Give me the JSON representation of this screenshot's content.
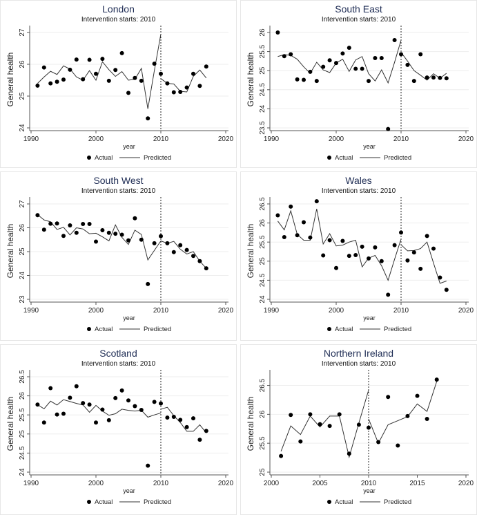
{
  "colors": {
    "title": "#1e2c54",
    "line": "#333333",
    "grid": "#eeeeee",
    "dot": "#000000"
  },
  "chart_data": [
    {
      "type": "scatter+line",
      "title": "London",
      "subtitle": "Intervention starts: 2010",
      "xlabel": "year",
      "ylabel": "General health",
      "xlim": [
        1990,
        2020
      ],
      "xticks": [
        1990,
        2000,
        2010,
        2020
      ],
      "ylim": [
        24,
        27
      ],
      "yticks": [
        "24",
        "25",
        "26",
        "27"
      ],
      "intervention_year": 2010,
      "legend": [
        "Actual",
        "Predicted"
      ],
      "legend_position": "bottom",
      "actual_x": [
        1991,
        1992,
        1993,
        1994,
        1995,
        1996,
        1997,
        1998,
        1999,
        2000,
        2001,
        2002,
        2003,
        2004,
        2005,
        2006,
        2007,
        2008,
        2009,
        2010,
        2011,
        2012,
        2013,
        2014,
        2015,
        2016,
        2017
      ],
      "actual_y": [
        25.33,
        25.9,
        25.4,
        25.45,
        25.52,
        25.83,
        26.15,
        25.53,
        26.14,
        25.7,
        26.17,
        25.48,
        25.82,
        26.35,
        25.1,
        25.57,
        25.48,
        24.3,
        26.02,
        25.7,
        25.4,
        25.12,
        25.13,
        25.27,
        25.7,
        25.32,
        25.93
      ],
      "pred_pre_x": [
        1991,
        1992,
        1993,
        1994,
        1995,
        1996,
        1997,
        1998,
        1999,
        2000,
        2001,
        2002,
        2003,
        2004,
        2005,
        2006,
        2007,
        2008,
        2009,
        2010
      ],
      "pred_pre_y": [
        25.4,
        25.6,
        25.78,
        25.68,
        25.95,
        25.85,
        25.6,
        25.5,
        25.8,
        25.5,
        26.08,
        25.83,
        25.62,
        25.77,
        25.5,
        25.53,
        25.87,
        24.6,
        25.8,
        26.95
      ],
      "pred_post_x": [
        2010,
        2011,
        2012,
        2013,
        2014,
        2015,
        2016,
        2017
      ],
      "pred_post_y": [
        25.55,
        25.4,
        25.38,
        25.15,
        25.13,
        25.62,
        25.82,
        25.57
      ]
    },
    {
      "type": "scatter+line",
      "title": "South East",
      "subtitle": "Intervention starts: 2010",
      "xlabel": "year",
      "ylabel": "General health",
      "xlim": [
        1990,
        2020
      ],
      "xticks": [
        1990,
        2000,
        2010,
        2020
      ],
      "ylim": [
        23.5,
        26
      ],
      "yticks": [
        "23.5",
        "24",
        "24.5",
        "25",
        "25.5",
        "26"
      ],
      "intervention_year": 2010,
      "legend": [
        "Actual",
        "Predicted"
      ],
      "legend_position": "bottom",
      "actual_x": [
        1991,
        1992,
        1993,
        1994,
        1995,
        1996,
        1997,
        1998,
        1999,
        2000,
        2001,
        2002,
        2003,
        2004,
        2005,
        2006,
        2007,
        2008,
        2009,
        2010,
        2011,
        2012,
        2013,
        2014,
        2015,
        2016,
        2017
      ],
      "actual_y": [
        26.0,
        25.38,
        25.43,
        24.77,
        24.76,
        24.97,
        24.73,
        25.1,
        25.27,
        25.2,
        25.45,
        25.6,
        25.05,
        25.05,
        24.73,
        25.33,
        25.33,
        23.47,
        25.8,
        25.43,
        25.15,
        24.73,
        25.43,
        24.82,
        24.82,
        24.81,
        24.8
      ],
      "pred_pre_x": [
        1991,
        1992,
        1993,
        1994,
        1995,
        1996,
        1997,
        1998,
        1999,
        2000,
        2001,
        2002,
        2003,
        2004,
        2005,
        2006,
        2007,
        2008,
        2009,
        2010
      ],
      "pred_pre_y": [
        25.37,
        25.42,
        25.4,
        25.3,
        25.1,
        24.93,
        25.22,
        25.02,
        24.95,
        25.2,
        25.3,
        24.98,
        25.28,
        25.37,
        24.92,
        24.73,
        25.02,
        24.68,
        25.22,
        25.8
      ],
      "pred_post_x": [
        2010,
        2011,
        2012,
        2013,
        2014,
        2015,
        2016,
        2017
      ],
      "pred_post_y": [
        25.48,
        25.25,
        25.0,
        24.88,
        24.75,
        24.92,
        24.8,
        24.93
      ]
    },
    {
      "type": "scatter+line",
      "title": "South West",
      "subtitle": "Intervention starts: 2010",
      "xlabel": "year",
      "ylabel": "General health",
      "xlim": [
        1990,
        2020
      ],
      "xticks": [
        1990,
        2000,
        2010,
        2020
      ],
      "ylim": [
        23,
        27
      ],
      "yticks": [
        "23",
        "24",
        "25",
        "26",
        "27"
      ],
      "intervention_year": 2010,
      "legend": [
        "Actual",
        "Predicted"
      ],
      "legend_position": "bottom",
      "actual_x": [
        1991,
        1992,
        1993,
        1994,
        1995,
        1996,
        1997,
        1998,
        1999,
        2000,
        2001,
        2002,
        2003,
        2004,
        2005,
        2006,
        2007,
        2008,
        2009,
        2010,
        2011,
        2012,
        2013,
        2014,
        2015,
        2016,
        2017
      ],
      "actual_y": [
        26.53,
        25.92,
        26.17,
        26.18,
        25.66,
        26.1,
        25.79,
        26.16,
        26.16,
        25.42,
        25.9,
        25.79,
        25.75,
        25.71,
        25.47,
        26.4,
        25.5,
        23.64,
        25.35,
        25.65,
        25.35,
        24.98,
        25.27,
        25.07,
        24.82,
        24.6,
        24.3
      ],
      "pred_pre_x": [
        1991,
        1992,
        1993,
        1994,
        1995,
        1996,
        1997,
        1998,
        1999,
        2000,
        2001,
        2002,
        2003,
        2004,
        2005,
        2006,
        2007,
        2008,
        2009,
        2010
      ],
      "pred_pre_y": [
        26.55,
        26.33,
        26.25,
        25.93,
        26.02,
        25.7,
        26.0,
        25.95,
        25.75,
        25.77,
        25.62,
        25.45,
        26.12,
        25.6,
        25.3,
        25.9,
        25.72,
        24.65,
        25.05,
        25.45
      ],
      "pred_post_x": [
        2010,
        2011,
        2012,
        2013,
        2014,
        2015,
        2016,
        2017
      ],
      "pred_post_y": [
        25.45,
        25.35,
        25.43,
        25.1,
        24.9,
        25.0,
        24.6,
        24.3
      ]
    },
    {
      "type": "scatter+line",
      "title": "Wales",
      "subtitle": "Intervention starts: 2010",
      "xlabel": "year",
      "ylabel": "General health",
      "xlim": [
        1990,
        2020
      ],
      "xticks": [
        1990,
        2000,
        2010,
        2020
      ],
      "ylim": [
        24,
        26.5
      ],
      "yticks": [
        "24",
        "24.5",
        "25",
        "25.5",
        "26",
        "26.5"
      ],
      "intervention_year": 2010,
      "legend": [
        "Actual",
        "Predicted"
      ],
      "legend_position": "bottom",
      "actual_x": [
        1991,
        1992,
        1993,
        1994,
        1995,
        1996,
        1997,
        1998,
        1999,
        2000,
        2001,
        2002,
        2003,
        2004,
        2005,
        2006,
        2007,
        2008,
        2009,
        2010,
        2011,
        2012,
        2013,
        2014,
        2015,
        2016,
        2017
      ],
      "actual_y": [
        26.2,
        25.63,
        26.43,
        25.68,
        26.02,
        25.62,
        26.57,
        25.15,
        25.55,
        24.82,
        25.53,
        25.14,
        25.16,
        25.38,
        25.07,
        25.36,
        25.0,
        24.12,
        25.42,
        25.75,
        25.02,
        25.23,
        24.8,
        25.66,
        25.33,
        24.57,
        24.25
      ],
      "pred_pre_x": [
        1991,
        1992,
        1993,
        1994,
        1995,
        1996,
        1997,
        1998,
        1999,
        2000,
        2001,
        2002,
        2003,
        2004,
        2005,
        2006,
        2007,
        2008,
        2009,
        2010
      ],
      "pred_pre_y": [
        26.05,
        25.82,
        26.32,
        25.7,
        25.55,
        25.55,
        26.37,
        25.45,
        25.72,
        25.4,
        25.42,
        25.5,
        25.55,
        24.85,
        25.08,
        25.15,
        24.88,
        24.5,
        25.05,
        25.58
      ],
      "pred_post_x": [
        2010,
        2011,
        2012,
        2013,
        2014,
        2015,
        2016,
        2017
      ],
      "pred_post_y": [
        25.43,
        25.27,
        25.28,
        25.33,
        25.5,
        24.95,
        24.42,
        24.48
      ]
    },
    {
      "type": "scatter+line",
      "title": "Scotland",
      "subtitle": "Intervention starts: 2010",
      "xlabel": "year",
      "ylabel": "General health",
      "xlim": [
        1990,
        2020
      ],
      "xticks": [
        1990,
        2000,
        2010,
        2020
      ],
      "ylim": [
        24,
        26.5
      ],
      "yticks": [
        "24",
        "24.5",
        "25",
        "25.5",
        "26",
        "26.5"
      ],
      "intervention_year": 2010,
      "legend": [
        "Actual",
        "Predicted"
      ],
      "legend_position": "bottom",
      "actual_x": [
        1991,
        1992,
        1993,
        1994,
        1995,
        1996,
        1997,
        1998,
        1999,
        2000,
        2001,
        2002,
        2003,
        2004,
        2005,
        2006,
        2007,
        2008,
        2009,
        2010,
        2011,
        2012,
        2013,
        2014,
        2015,
        2016,
        2017
      ],
      "actual_y": [
        25.77,
        25.3,
        26.2,
        25.51,
        25.53,
        25.95,
        26.25,
        25.81,
        25.77,
        25.3,
        25.64,
        25.36,
        25.94,
        26.14,
        25.88,
        25.73,
        25.63,
        24.17,
        25.84,
        25.8,
        25.43,
        25.45,
        25.37,
        25.18,
        25.41,
        24.85,
        25.08
      ],
      "pred_pre_x": [
        1991,
        1992,
        1993,
        1994,
        1995,
        1996,
        1997,
        1998,
        1999,
        2000,
        2001,
        2002,
        2003,
        2004,
        2005,
        2006,
        2007,
        2008,
        2009,
        2010
      ],
      "pred_pre_y": [
        25.77,
        25.66,
        25.86,
        25.76,
        25.9,
        25.85,
        25.8,
        25.76,
        25.57,
        25.75,
        25.6,
        25.49,
        25.53,
        25.65,
        25.62,
        25.6,
        25.62,
        25.44,
        25.5,
        25.55
      ],
      "pred_post_x": [
        2010,
        2011,
        2012,
        2013,
        2014,
        2015,
        2016,
        2017
      ],
      "pred_post_y": [
        25.65,
        25.7,
        25.48,
        25.3,
        25.07,
        25.07,
        25.24,
        25.03
      ]
    },
    {
      "type": "scatter+line",
      "title": "Northern Ireland",
      "subtitle": "Intervention starts: 2010",
      "xlabel": "year",
      "ylabel": "General health",
      "xlim": [
        2000,
        2020
      ],
      "xticks": [
        2000,
        2005,
        2010,
        2015,
        2020
      ],
      "ylim": [
        25,
        26.65
      ],
      "yticks": [
        "25",
        "25.5",
        "26",
        "26.5"
      ],
      "intervention_year": 2010,
      "legend": [
        "Actual",
        "Predicted"
      ],
      "legend_position": "bottom",
      "actual_x": [
        2001,
        2002,
        2003,
        2004,
        2005,
        2006,
        2007,
        2008,
        2009,
        2010,
        2011,
        2012,
        2013,
        2014,
        2015,
        2016,
        2017
      ],
      "actual_y": [
        25.28,
        25.99,
        25.53,
        26.0,
        25.83,
        25.8,
        26.0,
        25.32,
        25.82,
        25.77,
        25.52,
        26.3,
        25.46,
        25.97,
        26.32,
        25.92,
        26.6
      ],
      "pred_pre_x": [
        2001,
        2002,
        2003,
        2004,
        2005,
        2006,
        2007,
        2008,
        2009,
        2010
      ],
      "pred_pre_y": [
        25.36,
        25.8,
        25.65,
        25.97,
        25.78,
        25.97,
        25.97,
        25.26,
        25.85,
        26.42
      ],
      "pred_post_x": [
        2010,
        2011,
        2012,
        2013,
        2014,
        2015,
        2016,
        2017
      ],
      "pred_post_y": [
        25.92,
        25.5,
        25.82,
        25.89,
        25.96,
        26.18,
        26.05,
        26.57
      ]
    }
  ]
}
